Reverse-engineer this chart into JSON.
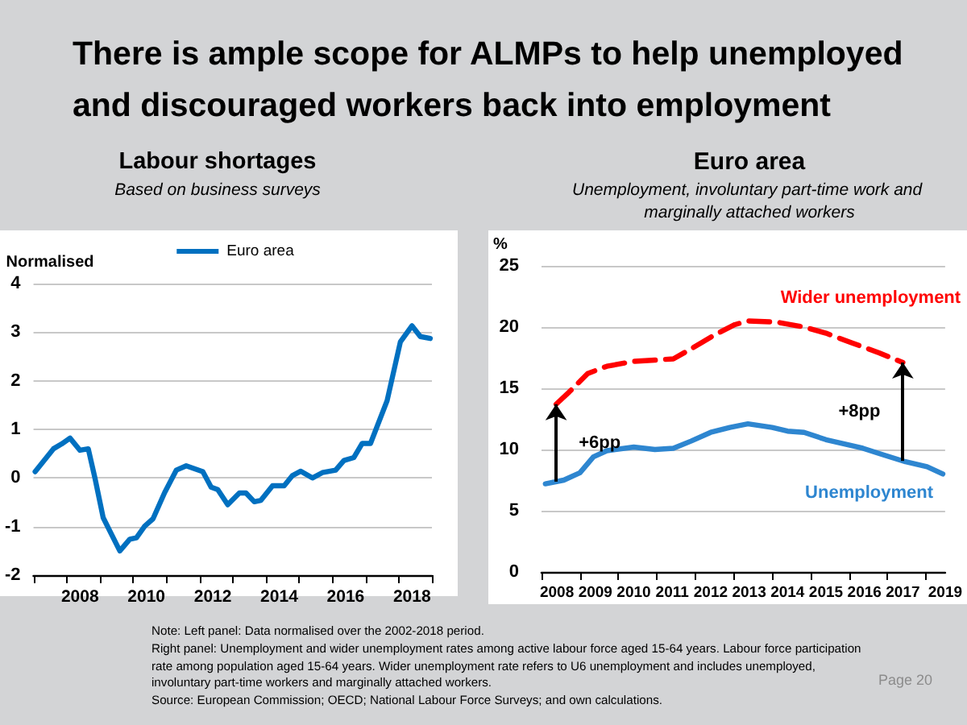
{
  "chart_data": [
    {
      "type": "other",
      "title": "There is ample scope for ALMPs to help unemployed and discouraged workers back into employment",
      "annotations": [
        "Note: Left panel: Data normalised over the 2002-2018 period.",
        "Right panel: Unemployment and wider unemployment rates among active labour force aged 15-64 years. Labour force participation rate among population aged 15-64 years. Wider unemployment rate refers to U6 unemployment and includes unemployed, involuntary part-time workers and marginally attached workers.",
        "Source: European Commission; OECD; National Labour Force Surveys; and own calculations.",
        "Page 20"
      ]
    },
    {
      "type": "line",
      "title": "Labour shortages",
      "subtitle": "Based on business surveys",
      "ylabel": "Normalised",
      "series": [
        {
          "name": "Euro area",
          "color": "#0070c0",
          "x": [
            2007.05,
            2007.6,
            2007.85,
            2008.1,
            2008.4,
            2008.65,
            2008.85,
            2009.1,
            2009.6,
            2009.9,
            2010.1,
            2010.35,
            2010.6,
            2010.95,
            2011.3,
            2011.6,
            2012.1,
            2012.35,
            2012.55,
            2012.85,
            2013.2,
            2013.4,
            2013.65,
            2013.85,
            2014.2,
            2014.55,
            2014.8,
            2015.05,
            2015.4,
            2015.7,
            2016.1,
            2016.35,
            2016.65,
            2016.9,
            2017.15,
            2017.65,
            2018.05,
            2018.4,
            2018.65,
            2018.95
          ],
          "values": [
            0.13,
            0.6,
            0.7,
            0.82,
            0.57,
            0.6,
            0,
            -0.82,
            -1.5,
            -1.26,
            -1.23,
            -0.99,
            -0.84,
            -0.3,
            0.16,
            0.25,
            0.13,
            -0.19,
            -0.24,
            -0.55,
            -0.31,
            -0.31,
            -0.49,
            -0.46,
            -0.16,
            -0.16,
            0.05,
            0.14,
            0,
            0.11,
            0.16,
            0.36,
            0.42,
            0.71,
            0.71,
            1.59,
            2.8,
            3.13,
            2.91,
            2.87
          ]
        }
      ],
      "xlim": [
        2007,
        2019
      ],
      "xticks": [
        {
          "value": 2007,
          "label": null
        },
        {
          "value": 2008,
          "label": null
        },
        {
          "value": 2009,
          "label": null
        },
        {
          "value": 2010,
          "label": null
        },
        {
          "value": 2011,
          "label": null
        },
        {
          "value": 2012,
          "label": null
        },
        {
          "value": 2013,
          "label": null
        },
        {
          "value": 2014,
          "label": null
        },
        {
          "value": 2015,
          "label": null
        },
        {
          "value": 2016,
          "label": null
        },
        {
          "value": 2017,
          "label": null
        },
        {
          "value": 2018,
          "label": null
        },
        {
          "value": 2019,
          "label": null
        },
        {
          "value": 2008.4,
          "label": "2008"
        },
        {
          "value": 2010.4,
          "label": "2010"
        },
        {
          "value": 2012.4,
          "label": "2012"
        },
        {
          "value": 2014.4,
          "label": "2014"
        },
        {
          "value": 2016.4,
          "label": "2016"
        },
        {
          "value": 2018.4,
          "label": "2018"
        }
      ],
      "ylim": [
        -2,
        4
      ],
      "yticks": [
        -2,
        -1,
        0,
        1,
        2,
        3,
        4
      ],
      "grid": "y",
      "legend": "top",
      "marker": "none",
      "line_style": "solid"
    },
    {
      "type": "line",
      "title": "Euro area",
      "subtitle": "Unemployment, involuntary part-time work and marginally attached workers",
      "ylabel": "%",
      "series": [
        {
          "name": "Unemployment",
          "color": "#2e86d0",
          "x": [
            2008.1,
            2008.58,
            2009.0,
            2009.35,
            2009.7,
            2010.4,
            2010.95,
            2011.43,
            2011.9,
            2012.4,
            2012.9,
            2013.37,
            2014.0,
            2014.4,
            2014.83,
            2015.4,
            2015.95,
            2016.36,
            2016.85,
            2017.47,
            2018.03,
            2018.44
          ],
          "values": [
            7.2,
            7.5,
            8.1,
            9.4,
            9.9,
            10.2,
            10.0,
            10.1,
            10.7,
            11.4,
            11.8,
            12.1,
            11.8,
            11.5,
            11.4,
            10.8,
            10.4,
            10.1,
            9.6,
            9.0,
            8.6,
            8.0
          ],
          "line_style": "solid"
        },
        {
          "name": "Wider unemployment",
          "color": "#ff0000",
          "x": [
            2008.38,
            2008.72,
            2009.2,
            2009.7,
            2010.4,
            2010.95,
            2011.43,
            2011.99,
            2012.47,
            2013.03,
            2013.37,
            2014.13,
            2014.83,
            2015.4,
            2016.08,
            2016.78,
            2017.4
          ],
          "values": [
            13.7,
            14.7,
            16.2,
            16.8,
            17.2,
            17.3,
            17.4,
            18.4,
            19.3,
            20.2,
            20.5,
            20.4,
            20.0,
            19.5,
            18.7,
            17.9,
            17.1
          ],
          "line_style": "dashed"
        }
      ],
      "annotations": [
        "+6pp",
        "+8pp"
      ],
      "xlim": [
        2008,
        2018.5
      ],
      "xticks": [
        {
          "value": 2008,
          "label": null
        },
        {
          "value": 2009,
          "label": null
        },
        {
          "value": 2010,
          "label": null
        },
        {
          "value": 2011,
          "label": null
        },
        {
          "value": 2012,
          "label": null
        },
        {
          "value": 2013,
          "label": null
        },
        {
          "value": 2014,
          "label": null
        },
        {
          "value": 2015,
          "label": null
        },
        {
          "value": 2016,
          "label": null
        },
        {
          "value": 2017,
          "label": null
        },
        {
          "value": 2018,
          "label": null
        },
        {
          "value": 2008.4,
          "label": "2008"
        },
        {
          "value": 2009.4,
          "label": "2009"
        },
        {
          "value": 2010.4,
          "label": "2010"
        },
        {
          "value": 2011.4,
          "label": "2011"
        },
        {
          "value": 2012.4,
          "label": "2012"
        },
        {
          "value": 2013.4,
          "label": "2013"
        },
        {
          "value": 2014.4,
          "label": "2014"
        },
        {
          "value": 2015.4,
          "label": "2015"
        },
        {
          "value": 2016.4,
          "label": "2016"
        },
        {
          "value": 2017.4,
          "label": "2017"
        },
        {
          "value": 2018.5,
          "label": "2019"
        }
      ],
      "ylim": [
        0,
        25
      ],
      "yticks": [
        0,
        5,
        10,
        15,
        20,
        25
      ],
      "grid": "y",
      "marker": "none"
    }
  ]
}
